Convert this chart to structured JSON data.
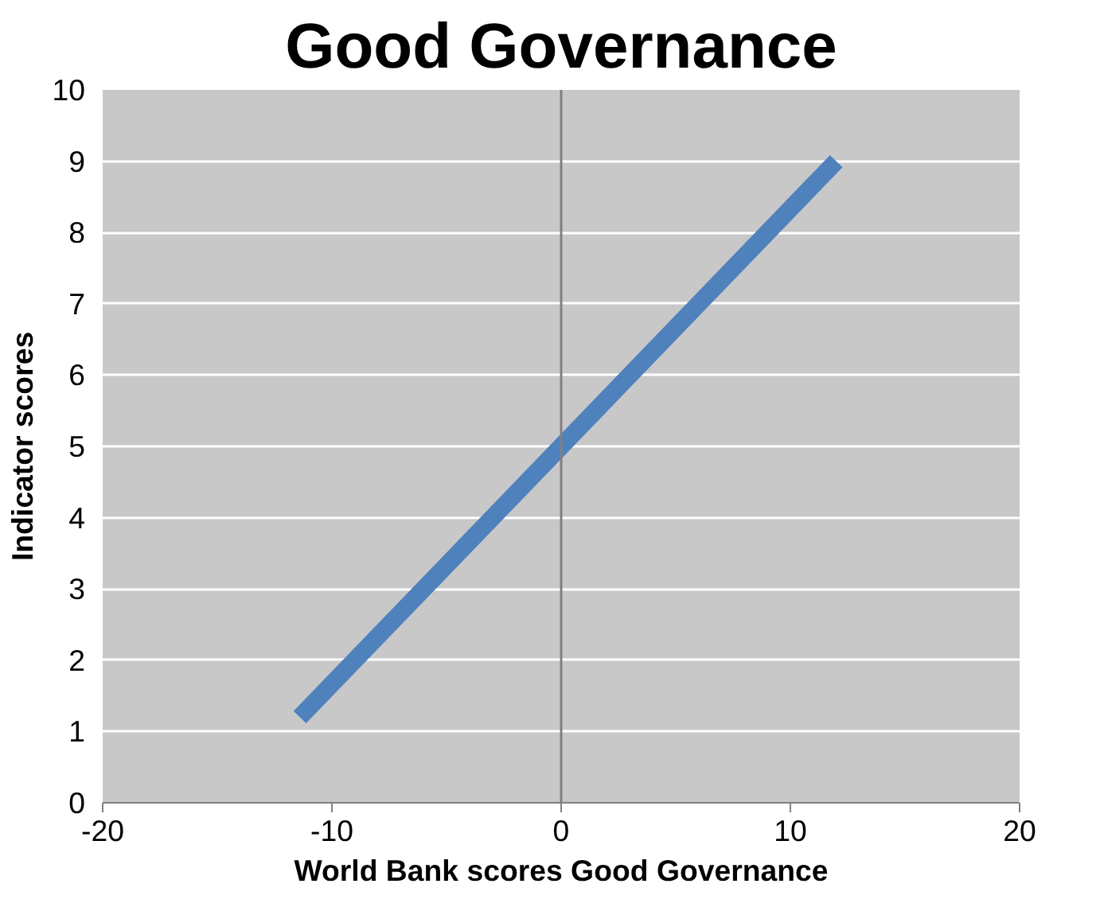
{
  "chart_data": {
    "type": "line",
    "title": "Good Governance",
    "xlabel": "World Bank scores Good Governance",
    "ylabel": "Indicator scores",
    "x": [
      -11.4,
      12
    ],
    "series": [
      {
        "color": "#4f81bd",
        "values": [
          1.2,
          9.0
        ]
      }
    ],
    "xlim": [
      -20,
      20
    ],
    "xticks": [
      -20,
      -10,
      0,
      10,
      20
    ],
    "ylim": [
      0,
      10
    ],
    "yticks": [
      0,
      1,
      2,
      3,
      4,
      5,
      6,
      7,
      8,
      9,
      10
    ],
    "ref_lines": [
      {
        "axis": "x",
        "value": 0,
        "color": "#808080"
      }
    ],
    "grid": "y",
    "marker": "none",
    "line_style": "solid"
  }
}
